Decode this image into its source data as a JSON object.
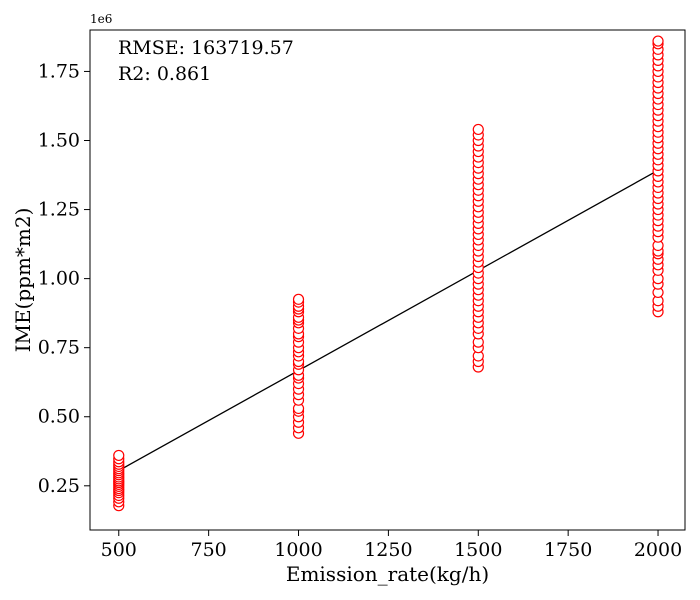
{
  "chart_data": {
    "type": "scatter",
    "title": "",
    "xlabel": "Emission_rate(kg/h)",
    "ylabel": "IME(ppm*m2)",
    "y_offset_label": "1e6",
    "xlim": [
      420,
      2075
    ],
    "ylim": [
      90000,
      1900000
    ],
    "xticks": [
      500,
      750,
      1000,
      1250,
      1500,
      1750,
      2000
    ],
    "xtick_labels": [
      "500",
      "750",
      "1000",
      "1250",
      "1500",
      "1750",
      "2000"
    ],
    "yticks": [
      250000,
      500000,
      750000,
      1000000,
      1250000,
      1500000,
      1750000
    ],
    "ytick_labels": [
      "0.25",
      "0.50",
      "0.75",
      "1.00",
      "1.25",
      "1.50",
      "1.75"
    ],
    "grid": false,
    "marker_color": "#ff0000",
    "line_color": "#000000",
    "annotations": [
      "RMSE: 163719.57",
      "R2: 0.861"
    ],
    "fit_line": {
      "x": [
        500,
        2000
      ],
      "y": [
        305000,
        1392000
      ]
    },
    "series": [
      {
        "x": [
          500,
          500,
          500,
          500,
          500,
          500,
          500,
          500,
          500,
          500,
          500,
          500,
          500,
          500,
          500,
          500,
          500,
          500,
          500,
          500,
          500,
          500
        ],
        "y": [
          178000,
          192000,
          205000,
          215000,
          225000,
          233000,
          240000,
          248000,
          255000,
          262000,
          268000,
          275000,
          282000,
          290000,
          297000,
          305000,
          312000,
          320000,
          328000,
          337000,
          348000,
          360000
        ]
      },
      {
        "x": [
          1000,
          1000,
          1000,
          1000,
          1000,
          1000,
          1000,
          1000,
          1000,
          1000,
          1000,
          1000,
          1000,
          1000,
          1000,
          1000,
          1000,
          1000,
          1000,
          1000,
          1000,
          1000,
          1000,
          1000,
          1000,
          1000,
          1000,
          1000,
          1000,
          1000
        ],
        "y": [
          440000,
          460000,
          480000,
          500000,
          520000,
          530000,
          560000,
          580000,
          600000,
          620000,
          640000,
          650000,
          670000,
          690000,
          700000,
          720000,
          735000,
          750000,
          770000,
          790000,
          800000,
          820000,
          840000,
          850000,
          860000,
          880000,
          890000,
          900000,
          915000,
          925000
        ]
      },
      {
        "x": [
          1500,
          1500,
          1500,
          1500,
          1500,
          1500,
          1500,
          1500,
          1500,
          1500,
          1500,
          1500,
          1500,
          1500,
          1500,
          1500,
          1500,
          1500,
          1500,
          1500,
          1500,
          1500,
          1500,
          1500,
          1500,
          1500,
          1500,
          1500,
          1500,
          1500,
          1500,
          1500,
          1500,
          1500,
          1500,
          1500,
          1500,
          1500,
          1500,
          1500,
          1500,
          1500,
          1500
        ],
        "y": [
          680000,
          700000,
          720000,
          750000,
          770000,
          800000,
          820000,
          840000,
          860000,
          880000,
          900000,
          920000,
          940000,
          960000,
          980000,
          1000000,
          1020000,
          1040000,
          1060000,
          1080000,
          1100000,
          1120000,
          1140000,
          1160000,
          1180000,
          1200000,
          1220000,
          1240000,
          1260000,
          1280000,
          1300000,
          1320000,
          1340000,
          1360000,
          1380000,
          1400000,
          1420000,
          1440000,
          1460000,
          1480000,
          1500000,
          1520000,
          1540000
        ]
      },
      {
        "x": [
          2000,
          2000,
          2000,
          2000,
          2000,
          2000,
          2000,
          2000,
          2000,
          2000,
          2000,
          2000,
          2000,
          2000,
          2000,
          2000,
          2000,
          2000,
          2000,
          2000,
          2000,
          2000,
          2000,
          2000,
          2000,
          2000,
          2000,
          2000,
          2000,
          2000,
          2000,
          2000,
          2000,
          2000,
          2000,
          2000,
          2000,
          2000,
          2000,
          2000,
          2000,
          2000,
          2000,
          2000,
          2000,
          2000,
          2000,
          2000,
          2000
        ],
        "y": [
          880000,
          900000,
          920000,
          950000,
          980000,
          1000000,
          1030000,
          1050000,
          1070000,
          1090000,
          1100000,
          1120000,
          1150000,
          1170000,
          1190000,
          1210000,
          1230000,
          1250000,
          1270000,
          1290000,
          1310000,
          1330000,
          1350000,
          1370000,
          1390000,
          1410000,
          1430000,
          1450000,
          1470000,
          1490000,
          1510000,
          1530000,
          1550000,
          1570000,
          1590000,
          1610000,
          1630000,
          1650000,
          1670000,
          1690000,
          1710000,
          1730000,
          1750000,
          1770000,
          1790000,
          1810000,
          1830000,
          1850000,
          1860000
        ]
      }
    ]
  }
}
